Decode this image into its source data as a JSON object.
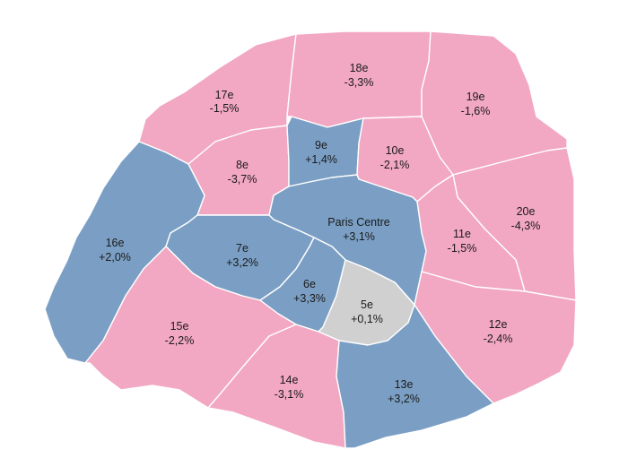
{
  "colors": {
    "decrease": "#f2a7c3",
    "increase": "#7b9fc4",
    "neutral": "#d0d0d0",
    "border": "#ffffff"
  },
  "districts": [
    {
      "key": "17e",
      "name": "17e",
      "change": "-1,5%",
      "category": "decrease"
    },
    {
      "key": "18e",
      "name": "18e",
      "change": "-3,3%",
      "category": "decrease"
    },
    {
      "key": "19e",
      "name": "19e",
      "change": "-1,6%",
      "category": "decrease"
    },
    {
      "key": "8e",
      "name": "8e",
      "change": "-3,7%",
      "category": "decrease"
    },
    {
      "key": "9e",
      "name": "9e",
      "change": "+1,4%",
      "category": "increase"
    },
    {
      "key": "10e",
      "name": "10e",
      "change": "-2,1%",
      "category": "decrease"
    },
    {
      "key": "20e",
      "name": "20e",
      "change": "-4,3%",
      "category": "decrease"
    },
    {
      "key": "16e",
      "name": "16e",
      "change": "+2,0%",
      "category": "increase"
    },
    {
      "key": "paris-centre",
      "name": "Paris Centre",
      "change": "+3,1%",
      "category": "increase"
    },
    {
      "key": "11e",
      "name": "11e",
      "change": "-1,5%",
      "category": "decrease"
    },
    {
      "key": "7e",
      "name": "7e",
      "change": "+3,2%",
      "category": "increase"
    },
    {
      "key": "6e",
      "name": "6e",
      "change": "+3,3%",
      "category": "increase"
    },
    {
      "key": "5e",
      "name": "5e",
      "change": "+0,1%",
      "category": "neutral"
    },
    {
      "key": "15e",
      "name": "15e",
      "change": "-2,2%",
      "category": "decrease"
    },
    {
      "key": "12e",
      "name": "12e",
      "change": "-2,4%",
      "category": "decrease"
    },
    {
      "key": "14e",
      "name": "14e",
      "change": "-3,1%",
      "category": "decrease"
    },
    {
      "key": "13e",
      "name": "13e",
      "change": "+3,2%",
      "category": "increase"
    }
  ]
}
